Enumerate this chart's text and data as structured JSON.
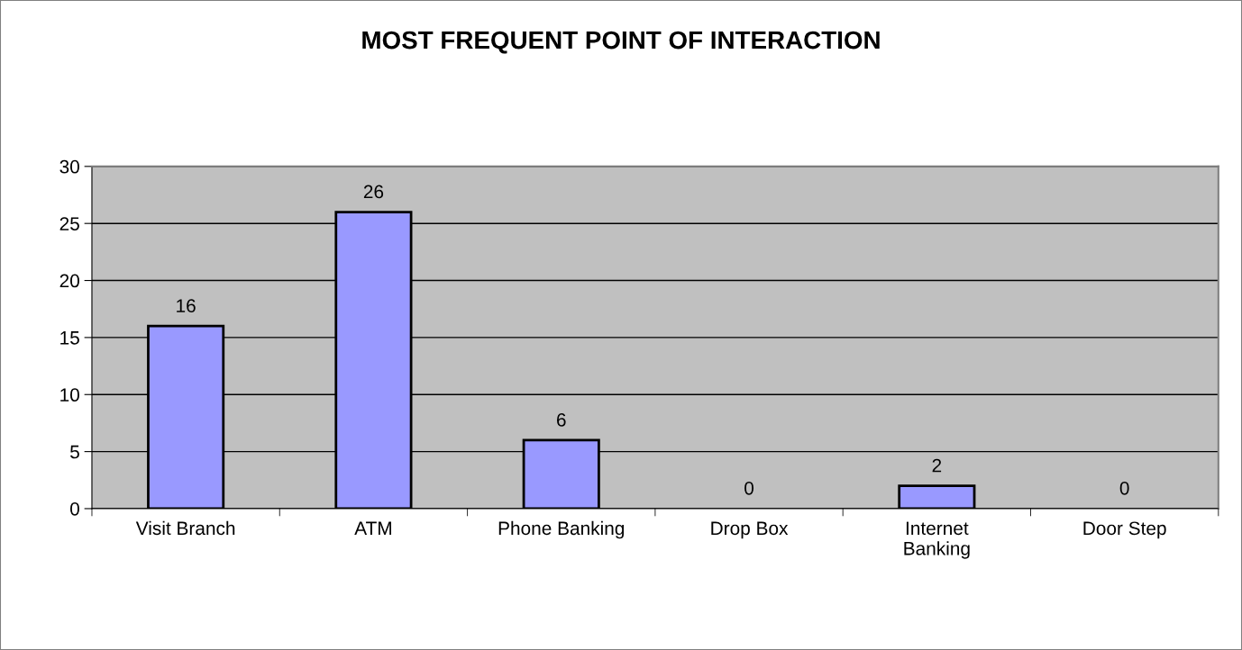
{
  "chart_data": {
    "type": "bar",
    "title": "MOST FREQUENT POINT OF INTERACTION",
    "categories": [
      "Visit Branch",
      "ATM",
      "Phone Banking",
      "Drop Box",
      "Internet\nBanking",
      "Door Step"
    ],
    "values": [
      16,
      26,
      6,
      0,
      2,
      0
    ],
    "color": "#9999ff",
    "ylim": [
      0,
      30
    ],
    "yticks": [
      0,
      5,
      10,
      15,
      20,
      25,
      30
    ],
    "grid": "y",
    "data_labels": true,
    "legend": false
  }
}
